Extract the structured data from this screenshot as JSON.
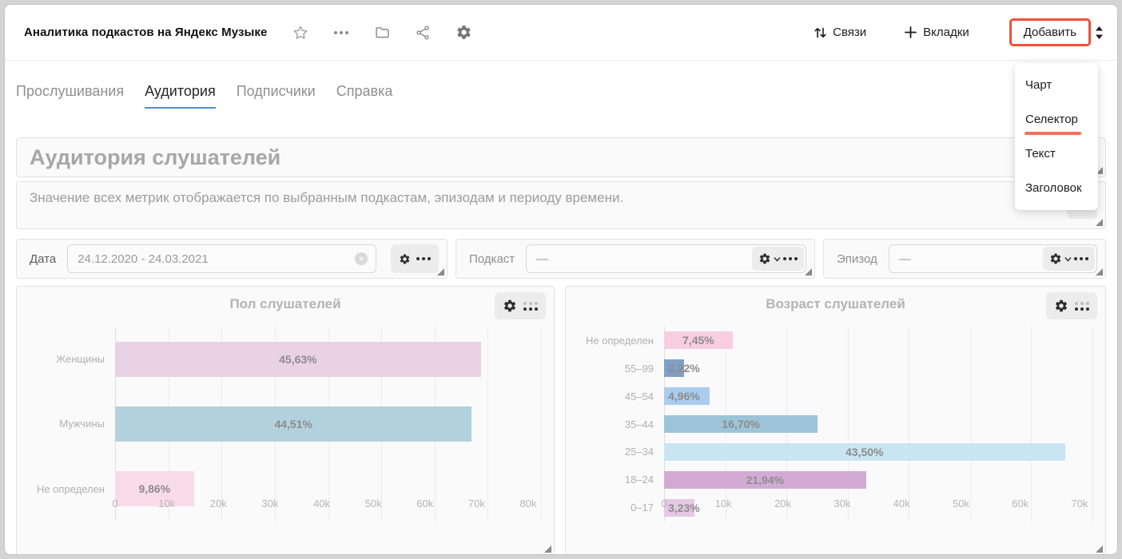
{
  "header": {
    "title": "Аналитика подкастов на Яндекс Музыке",
    "icons": [
      "star-icon",
      "ellipsis-icon",
      "folder-icon",
      "share-icon",
      "gear-icon"
    ],
    "links": {
      "relations": "Связи",
      "tabs": "Вкладки",
      "add": "Добавить"
    }
  },
  "annotations": {
    "add_button_box_color": "#f1503b",
    "selector_underline_color": "#f96f5d"
  },
  "dropdown": {
    "items": [
      "Чарт",
      "Селектор",
      "Текст",
      "Заголовок"
    ],
    "highlighted": "Селектор"
  },
  "tabs": [
    {
      "label": "Прослушивания",
      "active": false
    },
    {
      "label": "Аудитория",
      "active": true
    },
    {
      "label": "Подписчики",
      "active": false
    },
    {
      "label": "Справка",
      "active": false
    }
  ],
  "title_widget": {
    "text": "Аудитория слушателей"
  },
  "description_widget": {
    "text": "Значение всех метрик отображается по выбранным подкастам, эпизодам и периоду времени."
  },
  "filters": [
    {
      "label": "Дата",
      "value": "24.12.2020 - 24.03.2021",
      "clearable": true
    },
    {
      "label": "Подкаст",
      "value": "—",
      "clearable": false
    },
    {
      "label": "Эпизод",
      "value": "—",
      "clearable": false
    }
  ],
  "chart_data": [
    {
      "type": "bar",
      "orientation": "horizontal",
      "title": "Пол слушателей",
      "categories": [
        "Женщины",
        "Мужчины",
        "Не определен"
      ],
      "values": [
        68700,
        67000,
        14800
      ],
      "percent_labels": [
        "45,63%",
        "44,51%",
        "9,86%"
      ],
      "colors": [
        "#e9d1e6",
        "#b2d1dc",
        "#fadbe9"
      ],
      "x_ticks": [
        "0",
        "10k",
        "20k",
        "30k",
        "40k",
        "50k",
        "60k",
        "70k",
        "80k"
      ],
      "xlim": [
        0,
        80000
      ],
      "grid": true,
      "legend": false
    },
    {
      "type": "bar",
      "orientation": "horizontal",
      "title": "Возраст слушателей",
      "categories": [
        "Не определен",
        "55–99",
        "45–54",
        "35–44",
        "25–34",
        "18–24",
        "0–17"
      ],
      "values": [
        11200,
        3300,
        7500,
        25100,
        65500,
        33000,
        4900
      ],
      "percent_labels": [
        "7,45%",
        "2,22%",
        "4,96%",
        "16,70%",
        "43,50%",
        "21,94%",
        "3,23%"
      ],
      "colors": [
        "#f9cde0",
        "#7f9fc6",
        "#aacdee",
        "#9dc4d8",
        "#c9e5f2",
        "#d2abd5",
        "#e6c8e6"
      ],
      "x_ticks": [
        "0",
        "10k",
        "20k",
        "30k",
        "40k",
        "50k",
        "60k",
        "70k"
      ],
      "xlim": [
        0,
        70000
      ],
      "grid": true,
      "legend": false
    }
  ]
}
